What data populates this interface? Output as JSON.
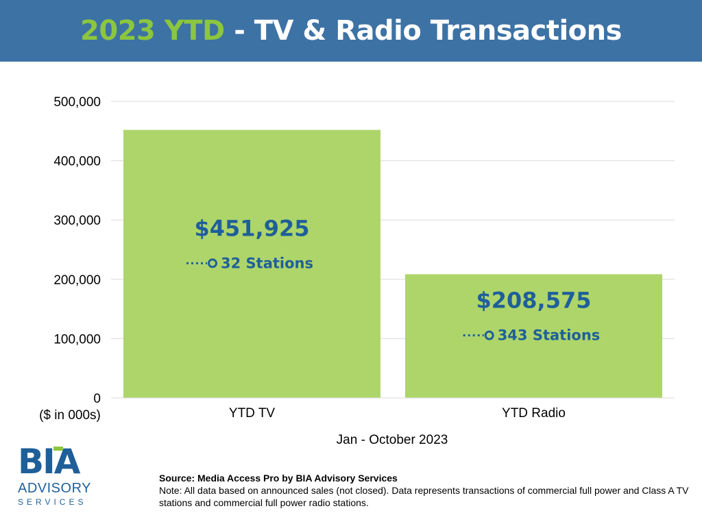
{
  "header": {
    "title_accent": "2023 YTD",
    "title_rest": " - TV & Radio Transactions"
  },
  "colors": {
    "header_bg": "#3d72a5",
    "accent_green": "#8cc63f",
    "bar_green": "#aed56a",
    "label_blue": "#1f5f99"
  },
  "chart_data": {
    "type": "bar",
    "title": "",
    "categories": [
      "YTD TV",
      "YTD Radio"
    ],
    "values": [
      451925,
      208575
    ],
    "data_labels": [
      "$451,925",
      "$208,575"
    ],
    "station_labels": [
      "32 Stations",
      "343 Stations"
    ],
    "ylim": [
      0,
      500000
    ],
    "yticks": [
      "0",
      "100,000",
      "200,000",
      "300,000",
      "400,000",
      "500,000"
    ],
    "ylabel": "($ in 000s)",
    "xlabel": "Jan - October 2023",
    "grid": true,
    "legend": "none"
  },
  "logo": {
    "text": "BIA",
    "line2": "ADVISORY",
    "line3": "SERVICES"
  },
  "footer": {
    "source": "Source: Media Access Pro by BIA Advisory Services",
    "note": "Note: All data based on announced sales (not closed).  Data represents transactions of commercial full power and Class A TV stations and commercial full power radio stations."
  }
}
